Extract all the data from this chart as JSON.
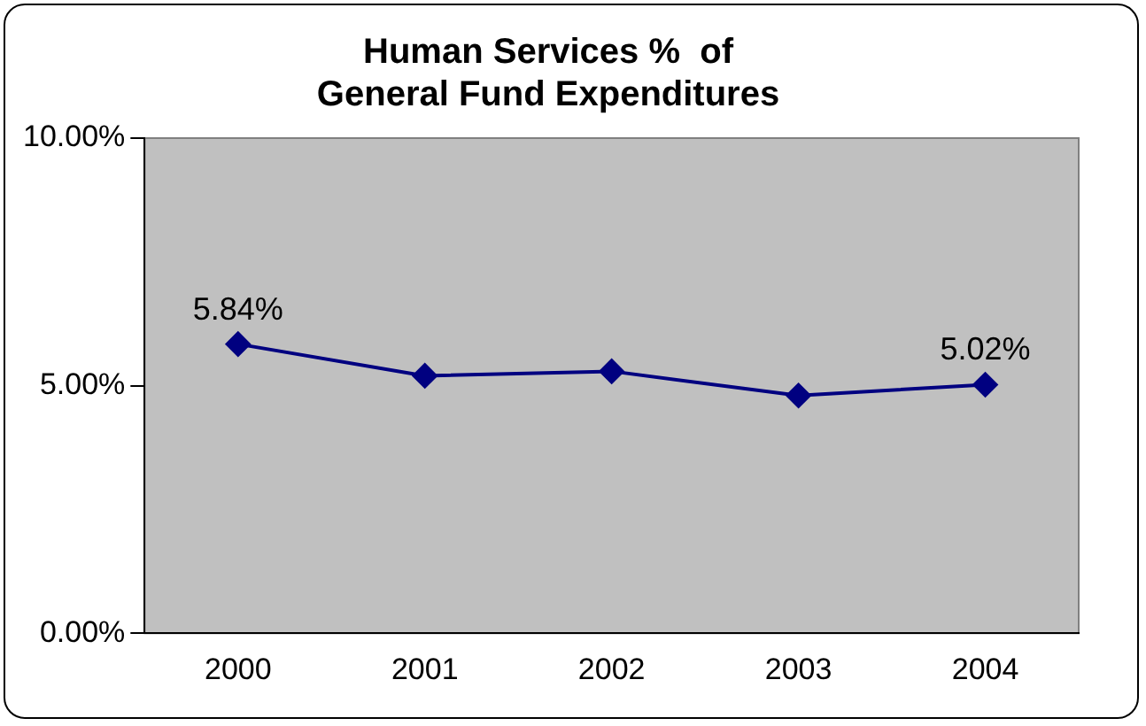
{
  "chart_data": {
    "type": "line",
    "title": "Human Services %  of\nGeneral Fund Expenditures",
    "categories": [
      "2000",
      "2001",
      "2002",
      "2003",
      "2004"
    ],
    "series": [
      {
        "color": "#000080",
        "values": [
          5.84,
          5.2,
          5.29,
          4.8,
          5.02
        ],
        "value_labels": [
          "5.84%",
          null,
          null,
          null,
          "5.02%"
        ]
      }
    ],
    "ylim": [
      0,
      10
    ],
    "yticks": [
      {
        "value": 0,
        "label": "0.00%"
      },
      {
        "value": 5,
        "label": "5.00%"
      },
      {
        "value": 10,
        "label": "10.00%"
      }
    ],
    "grid": false,
    "legend": false,
    "marker": "diamond",
    "line_style": "solid"
  }
}
